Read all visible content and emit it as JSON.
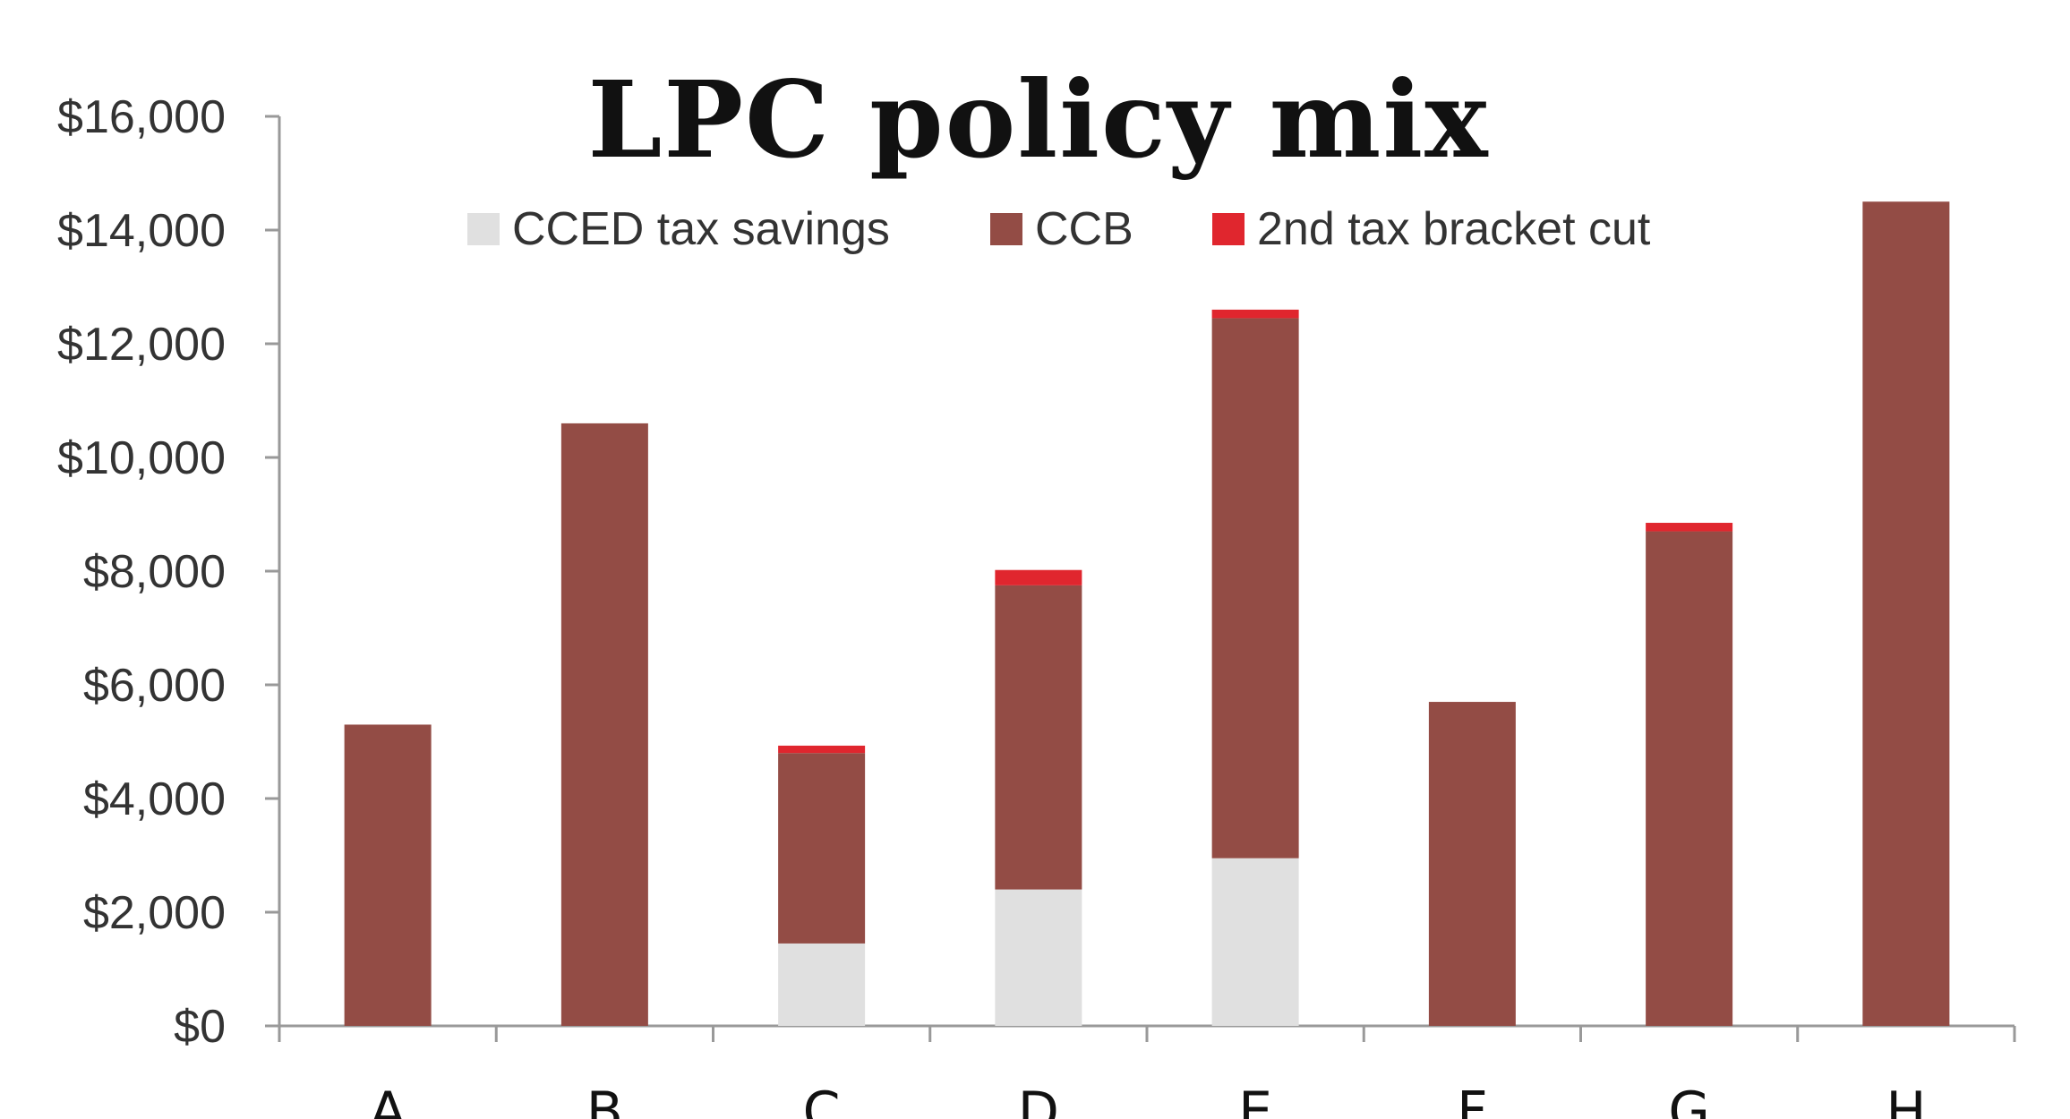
{
  "chart_data": {
    "type": "bar",
    "stacked": true,
    "title": "LPC policy mix",
    "xlabel": "",
    "ylabel": "",
    "categories": [
      "A",
      "B",
      "C",
      "D",
      "E",
      "F",
      "G",
      "H"
    ],
    "ylim": [
      0,
      16000
    ],
    "yticks": [
      0,
      2000,
      4000,
      6000,
      8000,
      10000,
      12000,
      14000,
      16000
    ],
    "ytick_labels": [
      "$0",
      "$2,000",
      "$4,000",
      "$6,000",
      "$8,000",
      "$10,000",
      "$12,000",
      "$14,000",
      "$16,000"
    ],
    "grid": false,
    "legend_position": "top",
    "series": [
      {
        "name": "CCED tax savings",
        "color": "#e0e0e0",
        "values": [
          0,
          0,
          1450,
          2400,
          2950,
          0,
          0,
          0
        ]
      },
      {
        "name": "CCB",
        "color": "#934c45",
        "values": [
          5300,
          10600,
          3350,
          5350,
          9500,
          5700,
          8700,
          14500
        ]
      },
      {
        "name": "2nd tax bracket cut",
        "color": "#e0262e",
        "values": [
          0,
          0,
          130,
          270,
          150,
          0,
          150,
          0
        ]
      }
    ]
  }
}
